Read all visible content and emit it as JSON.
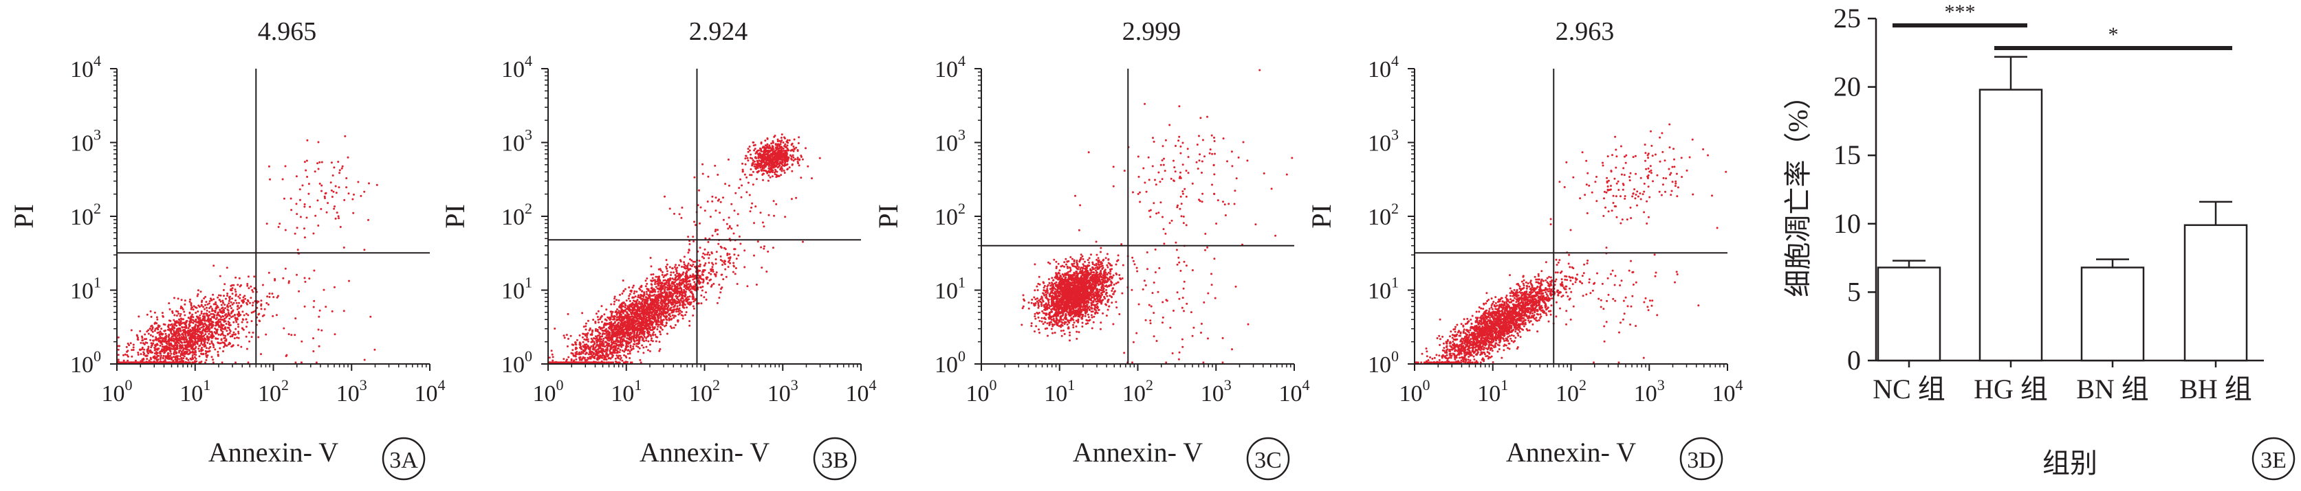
{
  "figure": {
    "panels": [
      {
        "id": "3A",
        "label": "3A",
        "value": "4.965",
        "ylabel": "PI",
        "xlabel": "Annexin- V"
      },
      {
        "id": "3B",
        "label": "3B",
        "value": "2.924",
        "ylabel": "PI",
        "xlabel": "Annexin- V"
      },
      {
        "id": "3C",
        "label": "3C",
        "value": "2.999",
        "ylabel": "PI",
        "xlabel": "Annexin- V"
      },
      {
        "id": "3D",
        "label": "3D",
        "value": "2.963",
        "ylabel": "PI",
        "xlabel": "Annexin- V"
      }
    ],
    "bar_panel_label": "3E"
  },
  "chart_data": [
    {
      "panel": "3A",
      "type": "scatter",
      "title": "4.965",
      "xlabel": "Annexin- V",
      "ylabel": "PI",
      "xscale": "log",
      "yscale": "log",
      "xlim": [
        1,
        10000
      ],
      "ylim": [
        1,
        10000
      ],
      "xticks": [
        "10^0",
        "10^1",
        "10^2",
        "10^3",
        "10^4"
      ],
      "yticks": [
        "10^0",
        "10^1",
        "10^2",
        "10^3",
        "10^4"
      ],
      "gates": {
        "x": 60,
        "y": 32
      },
      "point_color": "#e0202c",
      "populations": [
        {
          "name": "",
          "center": [
            8,
            2.2
          ],
          "log_spread": [
            0.42,
            0.3
          ],
          "correlation": 0.7,
          "count": 1700
        },
        {
          "name": "",
          "center": [
            400,
            200
          ],
          "log_spread": [
            0.35,
            0.3
          ],
          "correlation": 0.2,
          "count": 90
        },
        {
          "name": "",
          "center": [
            200,
            5
          ],
          "log_spread": [
            0.45,
            0.5
          ],
          "correlation": 0,
          "count": 60
        }
      ]
    },
    {
      "panel": "3B",
      "type": "scatter",
      "title": "2.924",
      "xlabel": "Annexin- V",
      "ylabel": "PI",
      "xscale": "log",
      "yscale": "log",
      "xlim": [
        1,
        10000
      ],
      "ylim": [
        1,
        10000
      ],
      "xticks": [
        "10^0",
        "10^1",
        "10^2",
        "10^3",
        "10^4"
      ],
      "yticks": [
        "10^0",
        "10^1",
        "10^2",
        "10^3",
        "10^4"
      ],
      "gates": {
        "x": 80,
        "y": 48
      },
      "point_color": "#e0202c",
      "populations": [
        {
          "name": "",
          "center": [
            14,
            4
          ],
          "log_spread": [
            0.45,
            0.38
          ],
          "correlation": 0.85,
          "count": 2800
        },
        {
          "name": "",
          "center": [
            750,
            620
          ],
          "log_spread": [
            0.14,
            0.11
          ],
          "correlation": 0.2,
          "count": 650
        },
        {
          "name": "",
          "center": [
            220,
            90
          ],
          "log_spread": [
            0.4,
            0.45
          ],
          "correlation": 0.3,
          "count": 130
        }
      ]
    },
    {
      "panel": "3C",
      "type": "scatter",
      "title": "2.999",
      "xlabel": "Annexin- V",
      "ylabel": "PI",
      "xscale": "log",
      "yscale": "log",
      "xlim": [
        1,
        10000
      ],
      "ylim": [
        1,
        10000
      ],
      "xticks": [
        "10^0",
        "10^1",
        "10^2",
        "10^3",
        "10^4"
      ],
      "yticks": [
        "10^0",
        "10^1",
        "10^2",
        "10^3",
        "10^4"
      ],
      "gates": {
        "x": 75,
        "y": 40
      },
      "point_color": "#e0202c",
      "populations": [
        {
          "name": "",
          "center": [
            16,
            9
          ],
          "log_spread": [
            0.22,
            0.2
          ],
          "correlation": 0.4,
          "count": 2200
        },
        {
          "name": "",
          "center": [
            400,
            350
          ],
          "log_spread": [
            0.5,
            0.4
          ],
          "correlation": 0.1,
          "count": 140
        },
        {
          "name": "",
          "center": [
            200,
            6
          ],
          "log_spread": [
            0.5,
            0.45
          ],
          "correlation": 0,
          "count": 90
        }
      ]
    },
    {
      "panel": "3D",
      "type": "scatter",
      "title": "2.963",
      "xlabel": "Annexin- V",
      "ylabel": "PI",
      "xscale": "log",
      "yscale": "log",
      "xlim": [
        1,
        10000
      ],
      "ylim": [
        1,
        10000
      ],
      "xticks": [
        "10^0",
        "10^1",
        "10^2",
        "10^3",
        "10^4"
      ],
      "yticks": [
        "10^0",
        "10^1",
        "10^2",
        "10^3",
        "10^4"
      ],
      "gates": {
        "x": 60,
        "y": 32
      },
      "point_color": "#e0202c",
      "populations": [
        {
          "name": "",
          "center": [
            12,
            3.5
          ],
          "log_spread": [
            0.38,
            0.3
          ],
          "correlation": 0.85,
          "count": 2300
        },
        {
          "name": "",
          "center": [
            700,
            300
          ],
          "log_spread": [
            0.4,
            0.3
          ],
          "correlation": 0.3,
          "count": 160
        },
        {
          "name": "",
          "center": [
            300,
            8
          ],
          "log_spread": [
            0.45,
            0.45
          ],
          "correlation": 0,
          "count": 80
        }
      ]
    },
    {
      "panel": "3E",
      "type": "bar",
      "xlabel": "组别",
      "ylabel": "细胞凋亡率（%）",
      "categories": [
        "NC 组",
        "HG 组",
        "BN 组",
        "BH 组"
      ],
      "values": [
        6.8,
        19.8,
        6.8,
        9.9
      ],
      "errors": [
        0.5,
        2.4,
        0.6,
        1.7
      ],
      "ylim": [
        0,
        25
      ],
      "yticks": [
        0,
        5,
        10,
        15,
        20,
        25
      ],
      "significance": [
        {
          "from": "NC 组",
          "to": "HG 组",
          "label": "***"
        },
        {
          "from": "HG 组",
          "to": "BH 组",
          "label": "*"
        }
      ],
      "bar_fill": "#ffffff",
      "bar_edge": "#231f20"
    }
  ]
}
